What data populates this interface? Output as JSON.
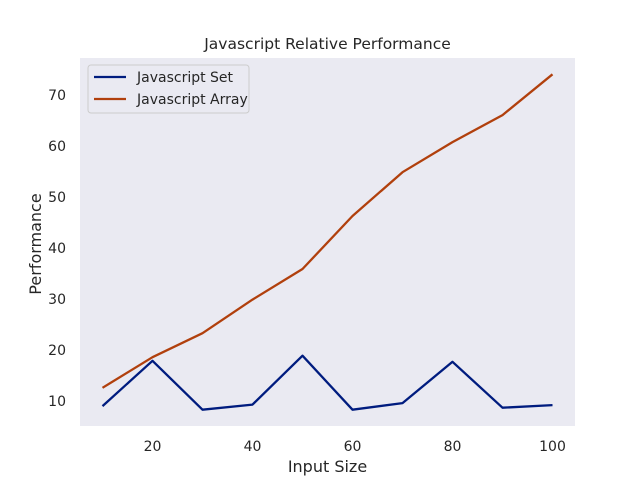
{
  "chart_data": {
    "type": "line",
    "title": "Javascript Relative Performance",
    "xlabel": "Input Size",
    "ylabel": "Performance",
    "x": [
      10,
      20,
      30,
      40,
      50,
      60,
      70,
      80,
      90,
      100
    ],
    "xlim": [
      5.5,
      104.5
    ],
    "ylim": [
      5.1,
      77.3
    ],
    "xticks": [
      20,
      40,
      60,
      80,
      100
    ],
    "yticks": [
      10,
      20,
      30,
      40,
      50,
      60,
      70
    ],
    "grid": false,
    "legend_position": "top-left",
    "background": "#eaeaf2",
    "series": [
      {
        "name": "Javascript Set",
        "color": "#001c7f",
        "values": [
          9.0,
          17.9,
          8.3,
          9.3,
          18.9,
          8.3,
          9.6,
          17.7,
          8.7,
          9.2
        ]
      },
      {
        "name": "Javascript Array",
        "color": "#b1400d",
        "values": [
          12.6,
          18.6,
          23.3,
          29.9,
          35.9,
          46.3,
          54.9,
          60.8,
          66.1,
          74.1
        ]
      }
    ]
  }
}
